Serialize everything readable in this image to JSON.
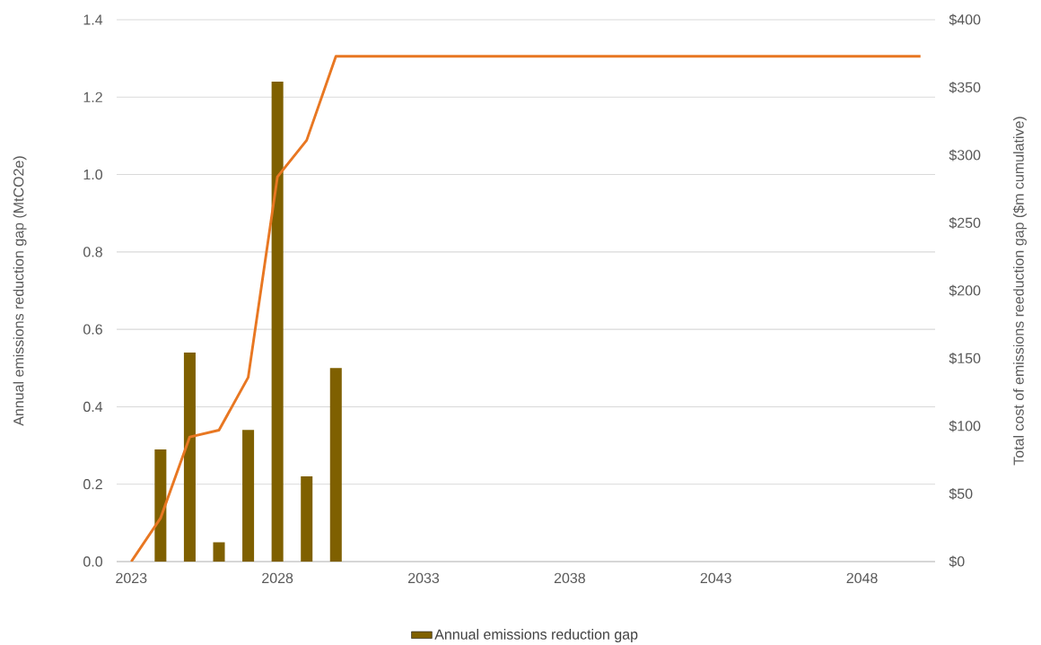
{
  "chart_data": {
    "type": "bar",
    "ylabel": "Annual emissions reduction gap (MtCO2e)",
    "y2label": "Total cost of emissions reeduction gap ($m cumulative)",
    "xlim": [
      2022.5,
      2050.5
    ],
    "xticks": [
      2023,
      2028,
      2033,
      2038,
      2043,
      2048
    ],
    "ylim": [
      0,
      1.4
    ],
    "yticks": [
      {
        "value": 0,
        "label": "0.0"
      },
      {
        "value": 0.2,
        "label": "0.2"
      },
      {
        "value": 0.4,
        "label": "0.4"
      },
      {
        "value": 0.6,
        "label": "0.6"
      },
      {
        "value": 0.8,
        "label": "0.8"
      },
      {
        "value": 1.0,
        "label": "1.0"
      },
      {
        "value": 1.2,
        "label": "1.2"
      },
      {
        "value": 1.4,
        "label": "1.4"
      }
    ],
    "y2lim": [
      0,
      400
    ],
    "y2ticks": [
      {
        "value": 0,
        "label": "$0"
      },
      {
        "value": 50,
        "label": "$50"
      },
      {
        "value": 100,
        "label": "$100"
      },
      {
        "value": 150,
        "label": "$150"
      },
      {
        "value": 200,
        "label": "$200"
      },
      {
        "value": 250,
        "label": "$250"
      },
      {
        "value": 300,
        "label": "$300"
      },
      {
        "value": 350,
        "label": "$350"
      },
      {
        "value": 400,
        "label": "$400"
      }
    ],
    "grid": "y",
    "legend": "bottom",
    "series": [
      {
        "name": "Annual emissions reduction gap",
        "color": "#7f6000",
        "x": [
          2024,
          2025,
          2026,
          2027,
          2028,
          2029,
          2030
        ],
        "values": [
          0.29,
          0.54,
          0.05,
          0.34,
          1.24,
          0.22,
          0.5
        ]
      },
      {
        "type": "line",
        "axis": "y2",
        "color": "#e87722",
        "x": [
          2023,
          2024,
          2025,
          2026,
          2027,
          2028,
          2029,
          2030,
          2031,
          2032,
          2033,
          2034,
          2035,
          2036,
          2037,
          2038,
          2039,
          2040,
          2041,
          2042,
          2043,
          2044,
          2045,
          2046,
          2047,
          2048,
          2049,
          2050
        ],
        "values": [
          0,
          32,
          92,
          97,
          136,
          284,
          311,
          373,
          373,
          373,
          373,
          373,
          373,
          373,
          373,
          373,
          373,
          373,
          373,
          373,
          373,
          373,
          373,
          373,
          373,
          373,
          373,
          373
        ]
      }
    ]
  }
}
